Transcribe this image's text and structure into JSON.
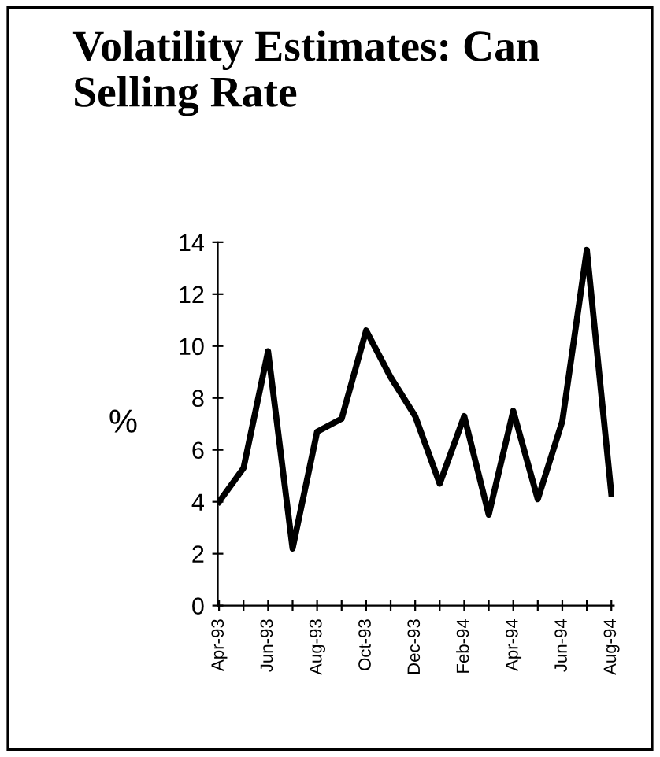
{
  "chart_data": {
    "type": "line",
    "title": "Volatility Estimates: Can Selling Rate",
    "ylabel": "%",
    "categories": [
      "Apr-93",
      null,
      "Jun-93",
      null,
      "Aug-93",
      null,
      "Oct-93",
      null,
      "Dec-93",
      null,
      "Feb-94",
      null,
      "Apr-94",
      null,
      "Jun-94",
      null,
      "Aug-94"
    ],
    "series": [
      {
        "color": "#000000",
        "values": [
          4.0,
          5.3,
          9.8,
          2.2,
          6.7,
          7.2,
          10.6,
          8.8,
          7.3,
          4.7,
          7.3,
          3.5,
          7.5,
          4.1,
          7.1,
          13.7,
          4.3
        ]
      }
    ],
    "ylim": [
      0,
      14
    ],
    "yticks": [
      0,
      2,
      4,
      6,
      8,
      10,
      12,
      14
    ],
    "grid": false,
    "marker": "none",
    "line_style": "solid"
  }
}
